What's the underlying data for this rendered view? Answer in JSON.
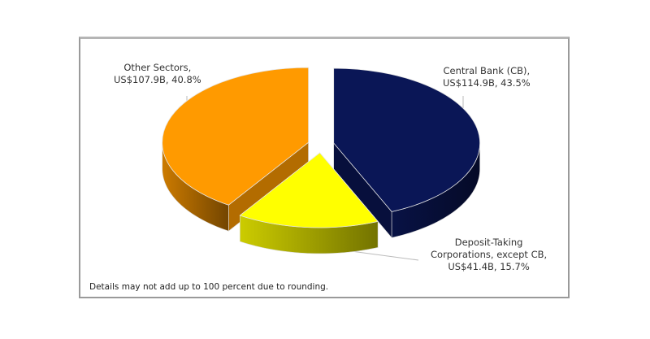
{
  "chart_data": {
    "type": "pie",
    "style": "3d-exploded",
    "slices": [
      {
        "label_line1": "Central Bank (CB),",
        "label_line2": "US$114.9B, 43.5%",
        "value": 114.9,
        "percent": 43.5,
        "color": "#0a1656"
      },
      {
        "label_line1": "Deposit-Taking",
        "label_line2": "Corporations, except CB,",
        "label_line3": "US$41.4B, 15.7%",
        "value": 41.4,
        "percent": 15.7,
        "color": "#ffff00"
      },
      {
        "label_line1": "Other Sectors,",
        "label_line2": "US$107.9B, 40.8%",
        "value": 107.9,
        "percent": 40.8,
        "color": "#ff9a00"
      }
    ],
    "note": "Details may not add up to 100 percent due to rounding."
  }
}
